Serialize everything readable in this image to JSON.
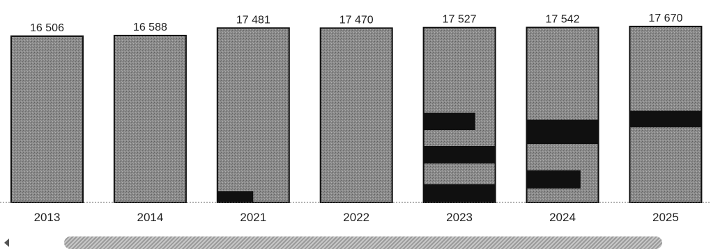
{
  "colors": {
    "bar": "#8a8a8a",
    "bar_dark": "#101010",
    "axis": "#666666"
  },
  "chart_data": {
    "type": "bar",
    "categories": [
      "2013",
      "2014",
      "2021",
      "2022",
      "2023",
      "2024",
      "2025"
    ],
    "values": [
      16506,
      16588,
      17481,
      17470,
      17527,
      17542,
      17670
    ],
    "value_labels": [
      "16 506",
      "16 588",
      "17 481",
      "17 470",
      "17 527",
      "17 542",
      "17 670"
    ],
    "title": "",
    "xlabel": "",
    "ylabel": "",
    "grid": false,
    "legend": "none"
  }
}
